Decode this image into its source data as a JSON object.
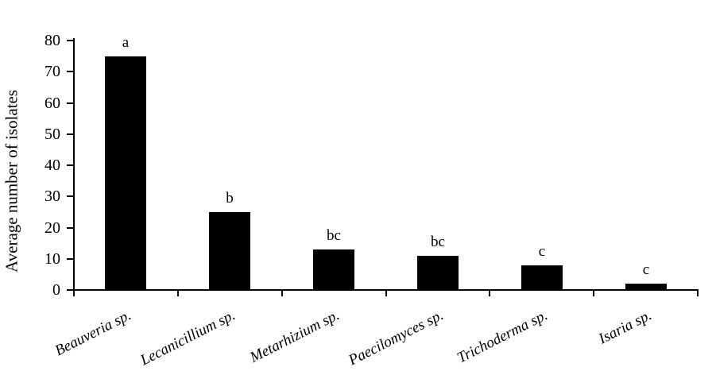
{
  "chart_data": {
    "type": "bar",
    "title": "",
    "xlabel": "",
    "ylabel": "Average number of isolates",
    "categories": [
      "Beauveria sp.",
      "Lecanicillium sp.",
      "Metarhizium sp.",
      "Paecilomyces sp.",
      "Trichoderma sp.",
      "Isaria sp."
    ],
    "values": [
      75,
      25,
      13,
      11,
      8,
      2
    ],
    "bar_labels": [
      "a",
      "b",
      "bc",
      "bc",
      "c",
      "c"
    ],
    "ylim": [
      0,
      80
    ],
    "ytick_step": 10,
    "yticks": [
      0,
      10,
      20,
      30,
      40,
      50,
      60,
      70,
      80
    ],
    "grid": false,
    "legend": null,
    "bar_color": "#000000",
    "axis_color": "#000000",
    "background_color": "#ffffff",
    "category_label_style": "italic-rotated"
  }
}
